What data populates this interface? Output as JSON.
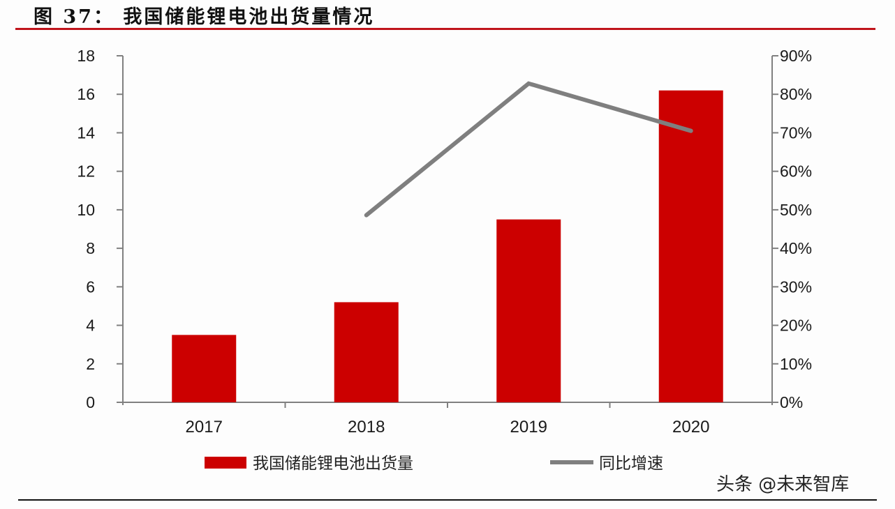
{
  "figure": {
    "title": "图 37： 我国储能锂电池出货量情况",
    "watermark": "头条 @未来智库"
  },
  "colors": {
    "bar": "#cc0000",
    "line": "#7f7f7f",
    "axis": "#808080",
    "title_rule": "#c0141b"
  },
  "chart_data": {
    "type": "bar+line",
    "title": "我国储能锂电池出货量情况",
    "categories": [
      "2017",
      "2018",
      "2019",
      "2020"
    ],
    "series": [
      {
        "name": "我国储能锂电池出货量",
        "type": "bar",
        "axis": "left",
        "values": [
          3.5,
          5.2,
          9.5,
          16.2
        ]
      },
      {
        "name": "同比增速",
        "type": "line",
        "axis": "right",
        "values": [
          null,
          0.486,
          0.828,
          0.705
        ]
      }
    ],
    "left_axis": {
      "ylim": [
        0,
        18
      ],
      "ticks": [
        "0",
        "2",
        "4",
        "6",
        "8",
        "10",
        "12",
        "14",
        "16",
        "18"
      ]
    },
    "right_axis": {
      "ylim": [
        0,
        0.9
      ],
      "ticks": [
        "0%",
        "10%",
        "20%",
        "30%",
        "40%",
        "50%",
        "60%",
        "70%",
        "80%",
        "90%"
      ]
    },
    "xlabel": "",
    "ylabel": "",
    "grid": false,
    "legend_position": "bottom"
  },
  "legend": {
    "bar_label": "我国储能锂电池出货量",
    "line_label": "同比增速"
  }
}
